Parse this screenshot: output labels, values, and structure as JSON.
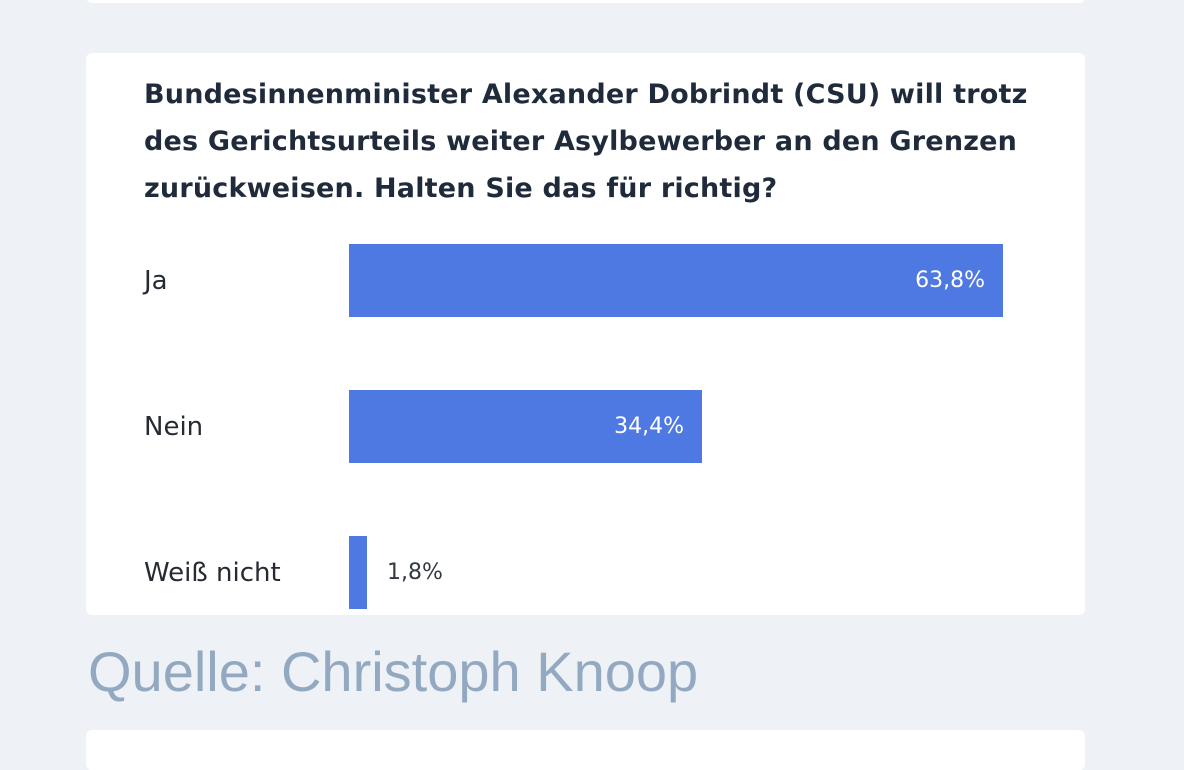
{
  "question": "Bundesinnenminister Alexander Dobrindt (CSU) will trotz des Gerichtsurteils weiter Asylbewerber an den Grenzen zurückweisen. Halten Sie das für richtig?",
  "source": "Quelle: Christoph Knoop",
  "colors": {
    "bar": "#4f79e2",
    "question_text": "#1f2a3b",
    "source_text": "#93a9c2",
    "background": "#eef2f6"
  },
  "chart_data": {
    "type": "bar",
    "orientation": "horizontal",
    "categories": [
      "Ja",
      "Nein",
      "Weiß nicht"
    ],
    "values": [
      63.8,
      34.4,
      1.8
    ],
    "value_labels": [
      "63,8%",
      "34,4%",
      "1,8%"
    ],
    "title": "Bundesinnenminister Alexander Dobrindt (CSU) will trotz des Gerichtsurteils weiter Asylbewerber an den Grenzen zurückweisen. Halten Sie das für richtig?",
    "xlim": [
      0,
      100
    ],
    "grid": false,
    "legend": "none"
  }
}
